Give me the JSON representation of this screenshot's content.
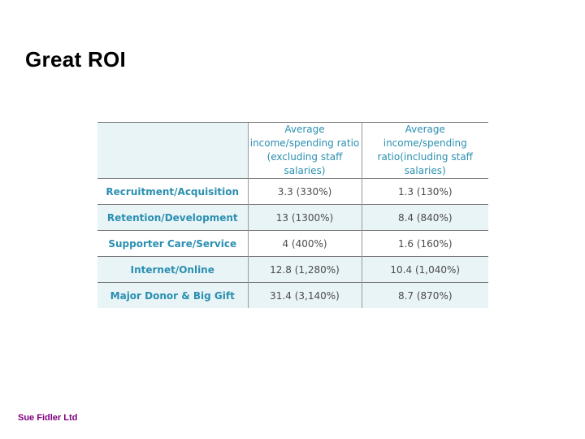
{
  "slide": {
    "title": "Great ROI",
    "footer": "Sue Fidler Ltd"
  },
  "table": {
    "headers": [
      "",
      "Average income/spending ratio (excluding staff salaries)",
      "Average income/spending ratio(including staff salaries)"
    ],
    "rows": [
      {
        "label": "Recruitment/Acquisition",
        "excl": "3.3 (330%)",
        "incl": "1.3 (130%)"
      },
      {
        "label": "Retention/Development",
        "excl": "13 (1300%)",
        "incl": "8.4 (840%)"
      },
      {
        "label": "Supporter Care/Service",
        "excl": "4 (400%)",
        "incl": "1.6 (160%)"
      },
      {
        "label": "Internet/Online",
        "excl": "12.8 (1,280%)",
        "incl": "10.4 (1,040%)"
      },
      {
        "label": "Major Donor & Big Gift",
        "excl": "31.4 (3,140%)",
        "incl": "8.7 (870%)"
      }
    ],
    "colors": {
      "label_text": "#2a8fb0",
      "shade": "#e9f4f7",
      "footer_text": "#800080"
    }
  }
}
